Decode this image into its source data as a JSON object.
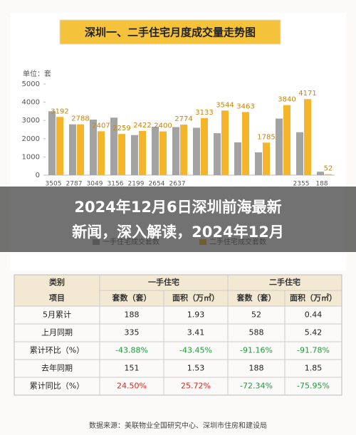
{
  "chart_data": {
    "type": "bar",
    "title": "深圳一、二手住宅月度成交量走势图",
    "y_label": "单位：套",
    "categories": [
      null,
      null,
      null,
      null,
      null,
      null,
      null,
      null,
      null,
      null,
      null,
      null,
      null,
      null
    ],
    "series": [
      {
        "name": "一手住宅成交套数",
        "color": "#a3a3a3",
        "values": [
          3505,
          2787,
          3049,
          3156,
          2199,
          2654,
          2637,
          2600,
          2300,
          1800,
          1250,
          3104,
          2355,
          188
        ],
        "value_labels": [
          "3505",
          "2787",
          "3049",
          "3156",
          "2199",
          "2654",
          "2637",
          null,
          null,
          null,
          null,
          null,
          "2355",
          "188"
        ]
      },
      {
        "name": "二手住宅成交套数",
        "color": "#f4b52a",
        "values": [
          3192,
          2788,
          2407,
          2259,
          2422,
          2400,
          2774,
          3133,
          3544,
          3463,
          1785,
          3840,
          4171,
          52
        ]
      }
    ],
    "ylim": [
      0,
      5000
    ],
    "yticks": [
      0,
      1000,
      2000,
      3000,
      4000,
      5000
    ],
    "grid": false
  },
  "banner": {
    "lines": [
      "2024年12月6日深圳前海最新",
      "新闻，深入解读，2024年12月"
    ]
  },
  "table": {
    "header": [
      [
        "类别",
        "一手住宅",
        "二手住宅"
      ],
      [
        "项目",
        "套数（套）",
        "面积（万㎡）",
        "套数（套）",
        "面积（万㎡）"
      ]
    ],
    "rows": [
      [
        "5月累计",
        "188",
        "1.93",
        "52",
        "0.44"
      ],
      [
        "上月同期",
        "335",
        "3.41",
        "588",
        "5.42"
      ],
      [
        "累计环比（%）",
        "-43.88%",
        "-43.45%",
        "-91.16%",
        "-91.78%"
      ],
      [
        "去年同期",
        "151",
        "1.53",
        "188",
        "1.85"
      ],
      [
        "累计同比（%）",
        "24.50%",
        "25.72%",
        "-72.34%",
        "-75.95%"
      ]
    ]
  },
  "source": "数据来源：美联物业全国研究中心、深圳市住房和建设局"
}
